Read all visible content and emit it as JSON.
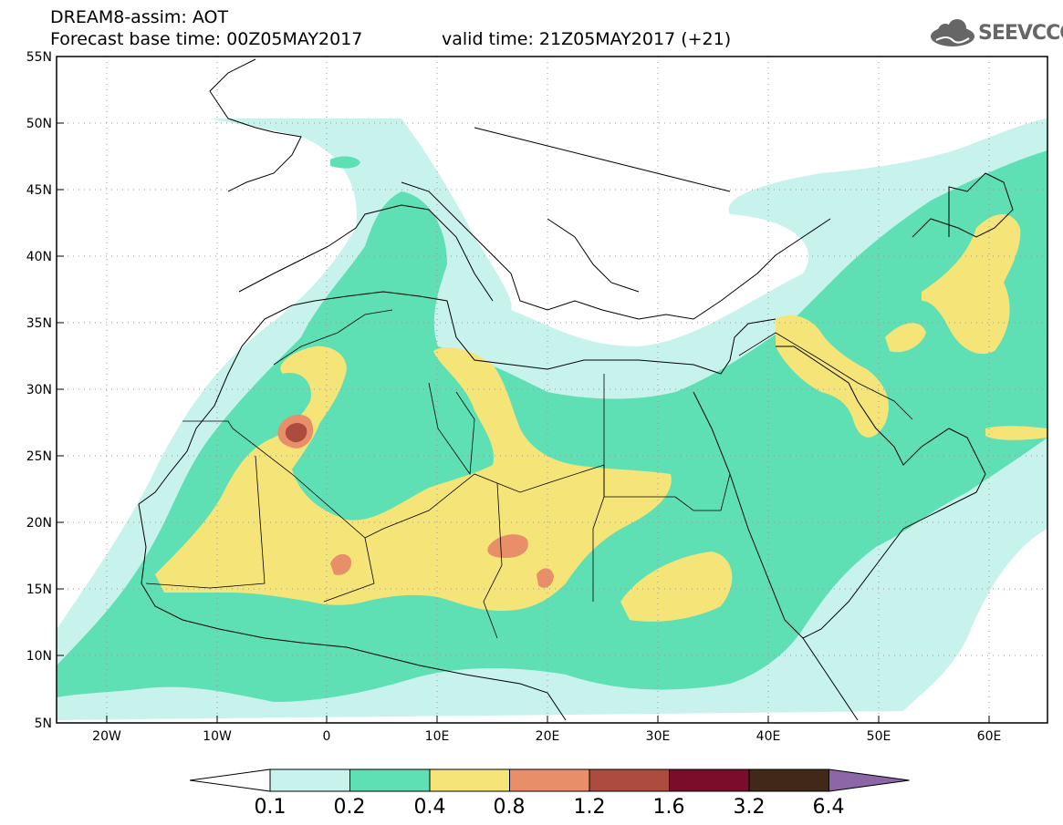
{
  "header": {
    "title": "DREAM8-assim: AOT",
    "base_time": "Forecast base time: 00Z05MAY2017",
    "valid_time": "valid time: 21Z05MAY2017 (+21)"
  },
  "logo": {
    "text": "SEEVCCC",
    "icon": "cloud-logo-icon",
    "color": "#666666"
  },
  "map": {
    "lat_range": [
      5,
      55
    ],
    "lon_range": [
      -25,
      65
    ],
    "lat_labels": [
      "55N",
      "50N",
      "45N",
      "40N",
      "35N",
      "30N",
      "25N",
      "20N",
      "15N",
      "10N",
      "5N"
    ],
    "lon_labels": [
      "20W",
      "10W",
      "0",
      "10E",
      "20E",
      "30E",
      "40E",
      "50E",
      "60E"
    ],
    "grid": "dotted"
  },
  "colorbar": {
    "labels": [
      "0.1",
      "0.2",
      "0.4",
      "0.8",
      "1.2",
      "1.6",
      "3.2",
      "6.4"
    ],
    "colors": [
      "#c8f3ed",
      "#5ee0b4",
      "#f5e478",
      "#e88e68",
      "#ab4c3e",
      "#7a0e2a",
      "#412818",
      "#8d66a8"
    ],
    "under_color": "#ffffff"
  }
}
